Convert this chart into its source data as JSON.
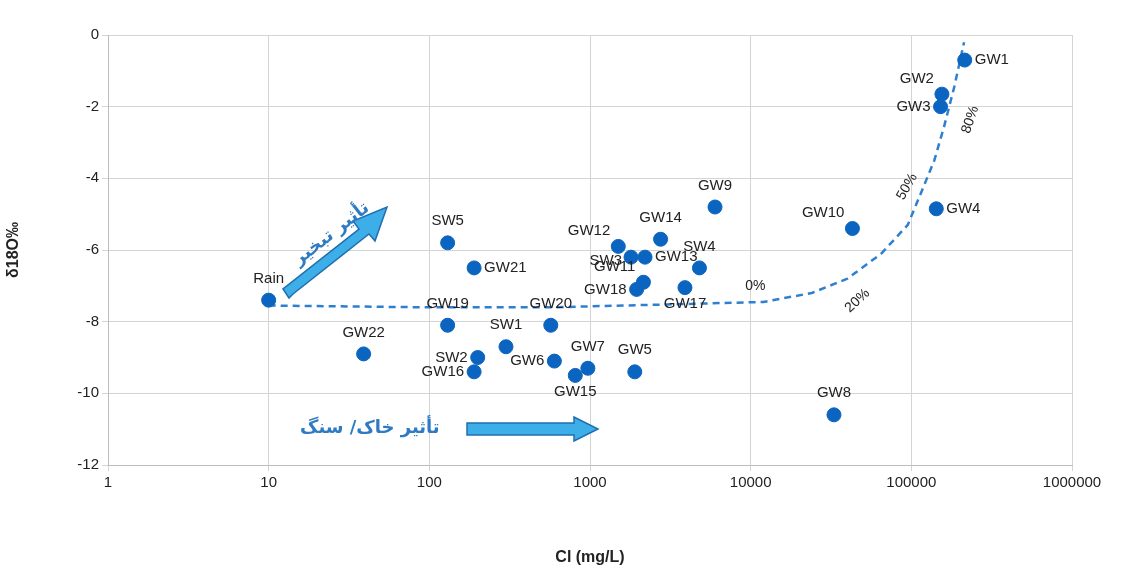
{
  "chart_data": {
    "type": "scatter",
    "xlabel": "Cl (mg/L)",
    "ylabel": "δ18O‰",
    "log": "x",
    "xlim": [
      1,
      1000000
    ],
    "xticks": [
      1,
      10,
      100,
      1000,
      10000,
      100000,
      1000000
    ],
    "ylim": [
      -12,
      0
    ],
    "yticks": [
      -12,
      -10,
      -8,
      -6,
      -4,
      -2,
      0
    ],
    "grid": true,
    "legend": false,
    "marker": "circle",
    "series": [
      {
        "name": "Rain",
        "color": "#0b64c0",
        "x": [
          10
        ],
        "values": [
          -7.4
        ]
      },
      {
        "name": "GW22",
        "color": "#0b64c0",
        "x": [
          39
        ],
        "values": [
          -8.9
        ]
      },
      {
        "name": "SW5",
        "color": "#0b64c0",
        "x": [
          130
        ],
        "values": [
          -5.8
        ]
      },
      {
        "name": "GW21",
        "color": "#0b64c0",
        "x": [
          190
        ],
        "values": [
          -6.5
        ]
      },
      {
        "name": "GW19",
        "color": "#0b64c0",
        "x": [
          130
        ],
        "values": [
          -8.1
        ]
      },
      {
        "name": "SW2",
        "color": "#0b64c0",
        "x": [
          200
        ],
        "values": [
          -9.0
        ]
      },
      {
        "name": "GW16",
        "color": "#0b64c0",
        "x": [
          190
        ],
        "values": [
          -9.4
        ]
      },
      {
        "name": "SW1",
        "color": "#0b64c0",
        "x": [
          300
        ],
        "values": [
          -8.7
        ]
      },
      {
        "name": "GW20",
        "color": "#0b64c0",
        "x": [
          570
        ],
        "values": [
          -8.1
        ]
      },
      {
        "name": "GW6",
        "color": "#0b64c0",
        "x": [
          600
        ],
        "values": [
          -9.1
        ]
      },
      {
        "name": "GW15",
        "color": "#0b64c0",
        "x": [
          810
        ],
        "values": [
          -9.5
        ]
      },
      {
        "name": "GW7",
        "color": "#0b64c0",
        "x": [
          970
        ],
        "values": [
          -9.3
        ]
      },
      {
        "name": "GW5",
        "color": "#0b64c0",
        "x": [
          1900
        ],
        "values": [
          -9.4
        ]
      },
      {
        "name": "GW12",
        "color": "#0b64c0",
        "x": [
          1500
        ],
        "values": [
          -5.9
        ]
      },
      {
        "name": "SW3",
        "color": "#0b64c0",
        "x": [
          1800
        ],
        "values": [
          -6.2
        ]
      },
      {
        "name": "GW13",
        "color": "#0b64c0",
        "x": [
          2200
        ],
        "values": [
          -6.2
        ]
      },
      {
        "name": "GW14",
        "color": "#0b64c0",
        "x": [
          2750
        ],
        "values": [
          -5.7
        ]
      },
      {
        "name": "SW4",
        "color": "#0b64c0",
        "x": [
          4800
        ],
        "values": [
          -6.5
        ]
      },
      {
        "name": "GW9",
        "color": "#0b64c0",
        "x": [
          6000
        ],
        "values": [
          -4.8
        ]
      },
      {
        "name": "GW11",
        "color": "#0b64c0",
        "x": [
          2150
        ],
        "values": [
          -6.9
        ]
      },
      {
        "name": "GW18",
        "color": "#0b64c0",
        "x": [
          1950
        ],
        "values": [
          -7.1
        ]
      },
      {
        "name": "GW17",
        "color": "#0b64c0",
        "x": [
          3900
        ],
        "values": [
          -7.05
        ]
      },
      {
        "name": "GW10",
        "color": "#0b64c0",
        "x": [
          43000
        ],
        "values": [
          -5.4
        ]
      },
      {
        "name": "GW8",
        "color": "#0b64c0",
        "x": [
          33000
        ],
        "values": [
          -10.6
        ]
      },
      {
        "name": "GW1",
        "color": "#0b64c0",
        "x": [
          215000
        ],
        "values": [
          -0.7
        ]
      },
      {
        "name": "GW2",
        "color": "#0b64c0",
        "x": [
          155000
        ],
        "values": [
          -1.65
        ]
      },
      {
        "name": "GW3",
        "color": "#0b64c0",
        "x": [
          152000
        ],
        "values": [
          -2.0
        ]
      },
      {
        "name": "GW4",
        "color": "#0b64c0",
        "x": [
          143000
        ],
        "values": [
          -4.85
        ]
      },
      {
        "type": "line",
        "color": "#2f7fd0",
        "line_style": "dashed",
        "marker": "none",
        "x": [
          10,
          100,
          570,
          3000,
          12000,
          24000,
          40000,
          65000,
          95000,
          115000,
          139000,
          160000,
          185000,
          213000
        ],
        "values": [
          -7.55,
          -7.6,
          -7.6,
          -7.52,
          -7.45,
          -7.2,
          -6.8,
          -6.1,
          -5.3,
          -4.4,
          -3.5,
          -2.55,
          -1.45,
          -0.2
        ]
      }
    ],
    "annotations": [
      {
        "text": "0%",
        "x": 12000,
        "y": -7.45
      },
      {
        "text": "20%",
        "x": 40000,
        "y": -6.8
      },
      {
        "text": "50%",
        "x": 115000,
        "y": -4.4
      },
      {
        "text": "80%",
        "x": 170000,
        "y": -2.2
      },
      "تأثیر تبخیر",
      "تأثیر خاک/ سنگ"
    ]
  }
}
